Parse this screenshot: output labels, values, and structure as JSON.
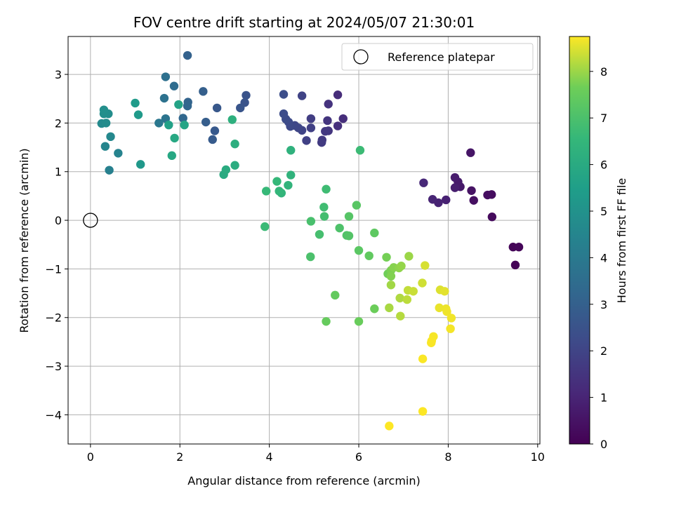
{
  "chart_data": {
    "type": "scatter",
    "title": "FOV centre drift starting at 2024/05/07 21:30:01",
    "xlabel": "Angular distance from reference (arcmin)",
    "ylabel": "Rotation from reference (arcmin)",
    "xlim": [
      -0.5,
      10.05
    ],
    "ylim": [
      -4.6,
      3.78
    ],
    "xticks": [
      0,
      2,
      4,
      6,
      8,
      10
    ],
    "yticks": [
      -4,
      -3,
      -2,
      -1,
      0,
      1,
      2,
      3
    ],
    "grid": true,
    "legend": {
      "placement": "top-right",
      "entries": [
        "Reference platepar"
      ]
    },
    "reference_point": {
      "x": 0,
      "y": 0,
      "label": "Reference platepar"
    },
    "colorbar": {
      "label": "Hours from first FF file",
      "colormap": "viridis",
      "range": [
        0,
        8.75
      ],
      "ticks": [
        0,
        1,
        2,
        3,
        4,
        5,
        6,
        7,
        8
      ]
    },
    "series": [
      {
        "points": [
          {
            "x": 9.5,
            "y": -0.92,
            "c": 0.05
          },
          {
            "x": 9.45,
            "y": -0.55,
            "c": 0.1
          },
          {
            "x": 9.58,
            "y": -0.55,
            "c": 0.15
          },
          {
            "x": 8.98,
            "y": 0.07,
            "c": 0.25
          },
          {
            "x": 8.97,
            "y": 0.53,
            "c": 0.3
          },
          {
            "x": 8.88,
            "y": 0.52,
            "c": 0.35
          },
          {
            "x": 8.57,
            "y": 0.41,
            "c": 0.4
          },
          {
            "x": 8.52,
            "y": 0.61,
            "c": 0.5
          },
          {
            "x": 8.5,
            "y": 1.39,
            "c": 0.55
          },
          {
            "x": 8.27,
            "y": 0.69,
            "c": 0.65
          },
          {
            "x": 8.22,
            "y": 0.79,
            "c": 0.7
          },
          {
            "x": 8.15,
            "y": 0.88,
            "c": 0.75
          },
          {
            "x": 8.15,
            "y": 0.67,
            "c": 0.8
          },
          {
            "x": 7.95,
            "y": 0.42,
            "c": 0.9
          },
          {
            "x": 7.78,
            "y": 0.36,
            "c": 0.95
          },
          {
            "x": 7.65,
            "y": 0.43,
            "c": 1.0
          },
          {
            "x": 7.45,
            "y": 0.77,
            "c": 1.1
          },
          {
            "x": 5.53,
            "y": 2.58,
            "c": 1.25
          },
          {
            "x": 5.65,
            "y": 2.09,
            "c": 1.3
          },
          {
            "x": 5.53,
            "y": 1.94,
            "c": 1.35
          },
          {
            "x": 5.32,
            "y": 2.39,
            "c": 1.45
          },
          {
            "x": 5.3,
            "y": 2.05,
            "c": 1.5
          },
          {
            "x": 5.32,
            "y": 1.84,
            "c": 1.55
          },
          {
            "x": 5.25,
            "y": 1.83,
            "c": 1.6
          },
          {
            "x": 5.18,
            "y": 1.65,
            "c": 1.65
          },
          {
            "x": 5.17,
            "y": 1.6,
            "c": 1.7
          },
          {
            "x": 4.93,
            "y": 2.09,
            "c": 1.8
          },
          {
            "x": 4.93,
            "y": 1.9,
            "c": 1.85
          },
          {
            "x": 4.83,
            "y": 1.64,
            "c": 1.9
          },
          {
            "x": 4.73,
            "y": 2.56,
            "c": 1.95
          },
          {
            "x": 4.73,
            "y": 1.85,
            "c": 2.0
          },
          {
            "x": 4.65,
            "y": 1.9,
            "c": 2.05
          },
          {
            "x": 4.57,
            "y": 1.95,
            "c": 2.1
          },
          {
            "x": 4.47,
            "y": 1.93,
            "c": 2.15
          },
          {
            "x": 4.43,
            "y": 2.02,
            "c": 2.2
          },
          {
            "x": 4.37,
            "y": 2.08,
            "c": 2.25
          },
          {
            "x": 4.32,
            "y": 2.19,
            "c": 2.3
          },
          {
            "x": 4.32,
            "y": 2.59,
            "c": 2.35
          },
          {
            "x": 3.48,
            "y": 2.57,
            "c": 2.5
          },
          {
            "x": 3.45,
            "y": 2.42,
            "c": 2.55
          },
          {
            "x": 3.35,
            "y": 2.31,
            "c": 2.6
          },
          {
            "x": 2.83,
            "y": 2.31,
            "c": 2.7
          },
          {
            "x": 2.78,
            "y": 1.84,
            "c": 2.75
          },
          {
            "x": 2.73,
            "y": 1.66,
            "c": 2.8
          },
          {
            "x": 2.58,
            "y": 2.02,
            "c": 2.9
          },
          {
            "x": 2.52,
            "y": 2.65,
            "c": 2.95
          },
          {
            "x": 2.17,
            "y": 3.39,
            "c": 3.05
          },
          {
            "x": 2.18,
            "y": 2.43,
            "c": 3.15
          },
          {
            "x": 2.17,
            "y": 2.35,
            "c": 3.2
          },
          {
            "x": 2.07,
            "y": 2.1,
            "c": 3.3
          },
          {
            "x": 1.87,
            "y": 2.76,
            "c": 3.45
          },
          {
            "x": 1.68,
            "y": 2.95,
            "c": 3.6
          },
          {
            "x": 1.65,
            "y": 2.51,
            "c": 3.7
          },
          {
            "x": 1.68,
            "y": 2.09,
            "c": 3.8
          },
          {
            "x": 1.53,
            "y": 2.0,
            "c": 3.9
          },
          {
            "x": 0.42,
            "y": 1.03,
            "c": 4.3
          },
          {
            "x": 0.62,
            "y": 1.38,
            "c": 4.4
          },
          {
            "x": 0.33,
            "y": 1.52,
            "c": 4.5
          },
          {
            "x": 0.45,
            "y": 1.72,
            "c": 4.6
          },
          {
            "x": 0.25,
            "y": 1.99,
            "c": 4.7
          },
          {
            "x": 0.35,
            "y": 2.0,
            "c": 4.75
          },
          {
            "x": 0.4,
            "y": 2.19,
            "c": 4.8
          },
          {
            "x": 0.3,
            "y": 2.19,
            "c": 4.85
          },
          {
            "x": 0.3,
            "y": 2.27,
            "c": 4.9
          },
          {
            "x": 1.12,
            "y": 1.15,
            "c": 5.25
          },
          {
            "x": 1.07,
            "y": 2.17,
            "c": 5.3
          },
          {
            "x": 1.0,
            "y": 2.41,
            "c": 5.35
          },
          {
            "x": 1.75,
            "y": 1.96,
            "c": 5.6
          },
          {
            "x": 1.97,
            "y": 2.38,
            "c": 5.7
          },
          {
            "x": 2.1,
            "y": 1.96,
            "c": 5.75
          },
          {
            "x": 1.82,
            "y": 1.33,
            "c": 5.85
          },
          {
            "x": 1.88,
            "y": 1.69,
            "c": 5.9
          },
          {
            "x": 2.98,
            "y": 0.94,
            "c": 6.0
          },
          {
            "x": 3.03,
            "y": 1.04,
            "c": 6.05
          },
          {
            "x": 3.23,
            "y": 1.13,
            "c": 6.1
          },
          {
            "x": 3.23,
            "y": 1.57,
            "c": 6.15
          },
          {
            "x": 3.17,
            "y": 2.07,
            "c": 6.2
          },
          {
            "x": 4.48,
            "y": 1.44,
            "c": 6.3
          },
          {
            "x": 4.48,
            "y": 0.93,
            "c": 6.35
          },
          {
            "x": 4.42,
            "y": 0.72,
            "c": 6.4
          },
          {
            "x": 4.27,
            "y": 0.56,
            "c": 6.45
          },
          {
            "x": 4.22,
            "y": 0.6,
            "c": 6.5
          },
          {
            "x": 4.17,
            "y": 0.8,
            "c": 6.55
          },
          {
            "x": 3.93,
            "y": 0.6,
            "c": 6.6
          },
          {
            "x": 3.9,
            "y": -0.13,
            "c": 6.65
          },
          {
            "x": 6.03,
            "y": 1.44,
            "c": 6.7
          },
          {
            "x": 5.27,
            "y": 0.64,
            "c": 6.75
          },
          {
            "x": 5.22,
            "y": 0.27,
            "c": 6.8
          },
          {
            "x": 5.23,
            "y": 0.08,
            "c": 6.85
          },
          {
            "x": 5.12,
            "y": -0.29,
            "c": 6.9
          },
          {
            "x": 4.93,
            "y": -0.02,
            "c": 6.95
          },
          {
            "x": 4.92,
            "y": -0.75,
            "c": 7.0
          },
          {
            "x": 5.57,
            "y": -0.16,
            "c": 7.05
          },
          {
            "x": 5.73,
            "y": -0.31,
            "c": 7.1
          },
          {
            "x": 5.78,
            "y": -0.32,
            "c": 7.15
          },
          {
            "x": 5.78,
            "y": 0.08,
            "c": 7.2
          },
          {
            "x": 5.95,
            "y": 0.31,
            "c": 7.25
          },
          {
            "x": 6.0,
            "y": -0.62,
            "c": 7.3
          },
          {
            "x": 6.35,
            "y": -0.26,
            "c": 7.35
          },
          {
            "x": 6.23,
            "y": -0.73,
            "c": 7.4
          },
          {
            "x": 5.47,
            "y": -1.54,
            "c": 7.45
          },
          {
            "x": 5.27,
            "y": -2.08,
            "c": 7.5
          },
          {
            "x": 6.0,
            "y": -2.08,
            "c": 7.55
          },
          {
            "x": 6.35,
            "y": -1.82,
            "c": 7.6
          },
          {
            "x": 6.65,
            "y": -1.1,
            "c": 7.65
          },
          {
            "x": 6.62,
            "y": -0.76,
            "c": 7.7
          },
          {
            "x": 6.72,
            "y": -1.03,
            "c": 7.75
          },
          {
            "x": 6.72,
            "y": -1.15,
            "c": 7.8
          },
          {
            "x": 6.78,
            "y": -0.97,
            "c": 7.85
          },
          {
            "x": 6.9,
            "y": -0.98,
            "c": 7.9
          },
          {
            "x": 6.95,
            "y": -0.94,
            "c": 7.95
          },
          {
            "x": 7.12,
            "y": -0.74,
            "c": 8.0
          },
          {
            "x": 6.72,
            "y": -1.33,
            "c": 8.05
          },
          {
            "x": 6.68,
            "y": -1.8,
            "c": 8.1
          },
          {
            "x": 6.92,
            "y": -1.6,
            "c": 8.15
          },
          {
            "x": 6.93,
            "y": -1.97,
            "c": 8.2
          },
          {
            "x": 7.08,
            "y": -1.63,
            "c": 8.25
          },
          {
            "x": 7.1,
            "y": -1.44,
            "c": 8.3
          },
          {
            "x": 7.22,
            "y": -1.46,
            "c": 8.35
          },
          {
            "x": 7.42,
            "y": -1.29,
            "c": 8.4
          },
          {
            "x": 7.48,
            "y": -0.93,
            "c": 8.45
          },
          {
            "x": 7.82,
            "y": -1.43,
            "c": 8.5
          },
          {
            "x": 7.92,
            "y": -1.46,
            "c": 8.55
          },
          {
            "x": 7.8,
            "y": -1.8,
            "c": 8.6
          },
          {
            "x": 7.95,
            "y": -1.82,
            "c": 8.62
          },
          {
            "x": 7.97,
            "y": -1.88,
            "c": 8.64
          },
          {
            "x": 8.07,
            "y": -2.01,
            "c": 8.66
          },
          {
            "x": 8.05,
            "y": -2.23,
            "c": 8.68
          },
          {
            "x": 7.67,
            "y": -2.39,
            "c": 8.7
          },
          {
            "x": 7.63,
            "y": -2.48,
            "c": 8.71
          },
          {
            "x": 7.62,
            "y": -2.52,
            "c": 8.72
          },
          {
            "x": 7.43,
            "y": -2.85,
            "c": 8.73
          },
          {
            "x": 7.43,
            "y": -3.93,
            "c": 8.74
          },
          {
            "x": 6.68,
            "y": -4.23,
            "c": 8.75
          }
        ]
      }
    ]
  }
}
